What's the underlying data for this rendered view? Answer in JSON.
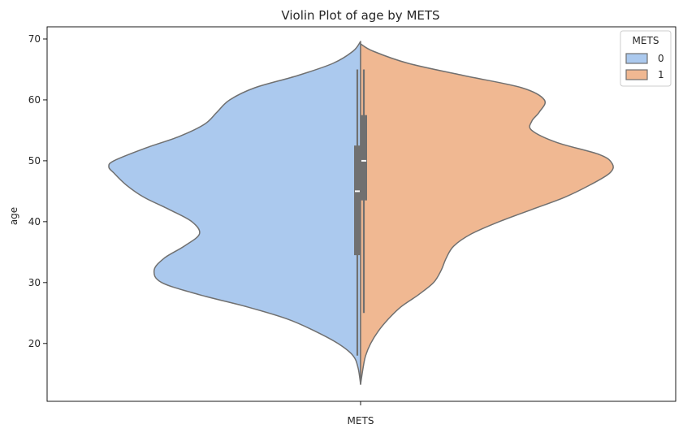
{
  "chart_data": {
    "type": "violin",
    "title": "Violin Plot of age by METS",
    "xlabel": "",
    "ylabel": "age",
    "ylim": [
      10.5,
      72
    ],
    "grid": false,
    "categories": [
      "METS"
    ],
    "yticks": [
      20,
      30,
      40,
      50,
      60,
      70
    ],
    "legend": {
      "title": "METS",
      "placement": "top-right",
      "entries": [
        "0",
        "1"
      ]
    },
    "series": [
      {
        "name": "0",
        "side": "left",
        "color": "#abc9ee",
        "density": [
          [
            13.3,
            0.0
          ],
          [
            16,
            0.01
          ],
          [
            18,
            0.03
          ],
          [
            20,
            0.09
          ],
          [
            22,
            0.18
          ],
          [
            24,
            0.29
          ],
          [
            26,
            0.45
          ],
          [
            28,
            0.64
          ],
          [
            30,
            0.79
          ],
          [
            32,
            0.82
          ],
          [
            34,
            0.78
          ],
          [
            36,
            0.7
          ],
          [
            38,
            0.64
          ],
          [
            40,
            0.67
          ],
          [
            42,
            0.76
          ],
          [
            44,
            0.86
          ],
          [
            46,
            0.93
          ],
          [
            48,
            0.98
          ],
          [
            49,
            1.0
          ],
          [
            50,
            0.98
          ],
          [
            52,
            0.86
          ],
          [
            54,
            0.72
          ],
          [
            56,
            0.62
          ],
          [
            58,
            0.57
          ],
          [
            60,
            0.52
          ],
          [
            62,
            0.42
          ],
          [
            64,
            0.25
          ],
          [
            66,
            0.11
          ],
          [
            68,
            0.03
          ],
          [
            69.6,
            0.0
          ]
        ],
        "box": {
          "q1": 34.5,
          "median": 45,
          "q3": 52.5,
          "whisker_low": 18,
          "whisker_high": 65
        }
      },
      {
        "name": "1",
        "side": "right",
        "color": "#f0b892",
        "density": [
          [
            13.3,
            0.0
          ],
          [
            16,
            0.01
          ],
          [
            18,
            0.02
          ],
          [
            20,
            0.04
          ],
          [
            22,
            0.07
          ],
          [
            24,
            0.11
          ],
          [
            26,
            0.16
          ],
          [
            28,
            0.23
          ],
          [
            30,
            0.29
          ],
          [
            32,
            0.32
          ],
          [
            34,
            0.34
          ],
          [
            36,
            0.37
          ],
          [
            38,
            0.44
          ],
          [
            40,
            0.55
          ],
          [
            42,
            0.68
          ],
          [
            44,
            0.81
          ],
          [
            46,
            0.91
          ],
          [
            48,
            0.99
          ],
          [
            49.5,
            1.0
          ],
          [
            51,
            0.95
          ],
          [
            53,
            0.78
          ],
          [
            55,
            0.68
          ],
          [
            56.5,
            0.68
          ],
          [
            58,
            0.71
          ],
          [
            60,
            0.73
          ],
          [
            62,
            0.64
          ],
          [
            64,
            0.41
          ],
          [
            66,
            0.19
          ],
          [
            68,
            0.05
          ],
          [
            69.2,
            0.0
          ]
        ],
        "box": {
          "q1": 43.5,
          "median": 50,
          "q3": 57.5,
          "whisker_low": 25,
          "whisker_high": 65
        }
      }
    ]
  }
}
